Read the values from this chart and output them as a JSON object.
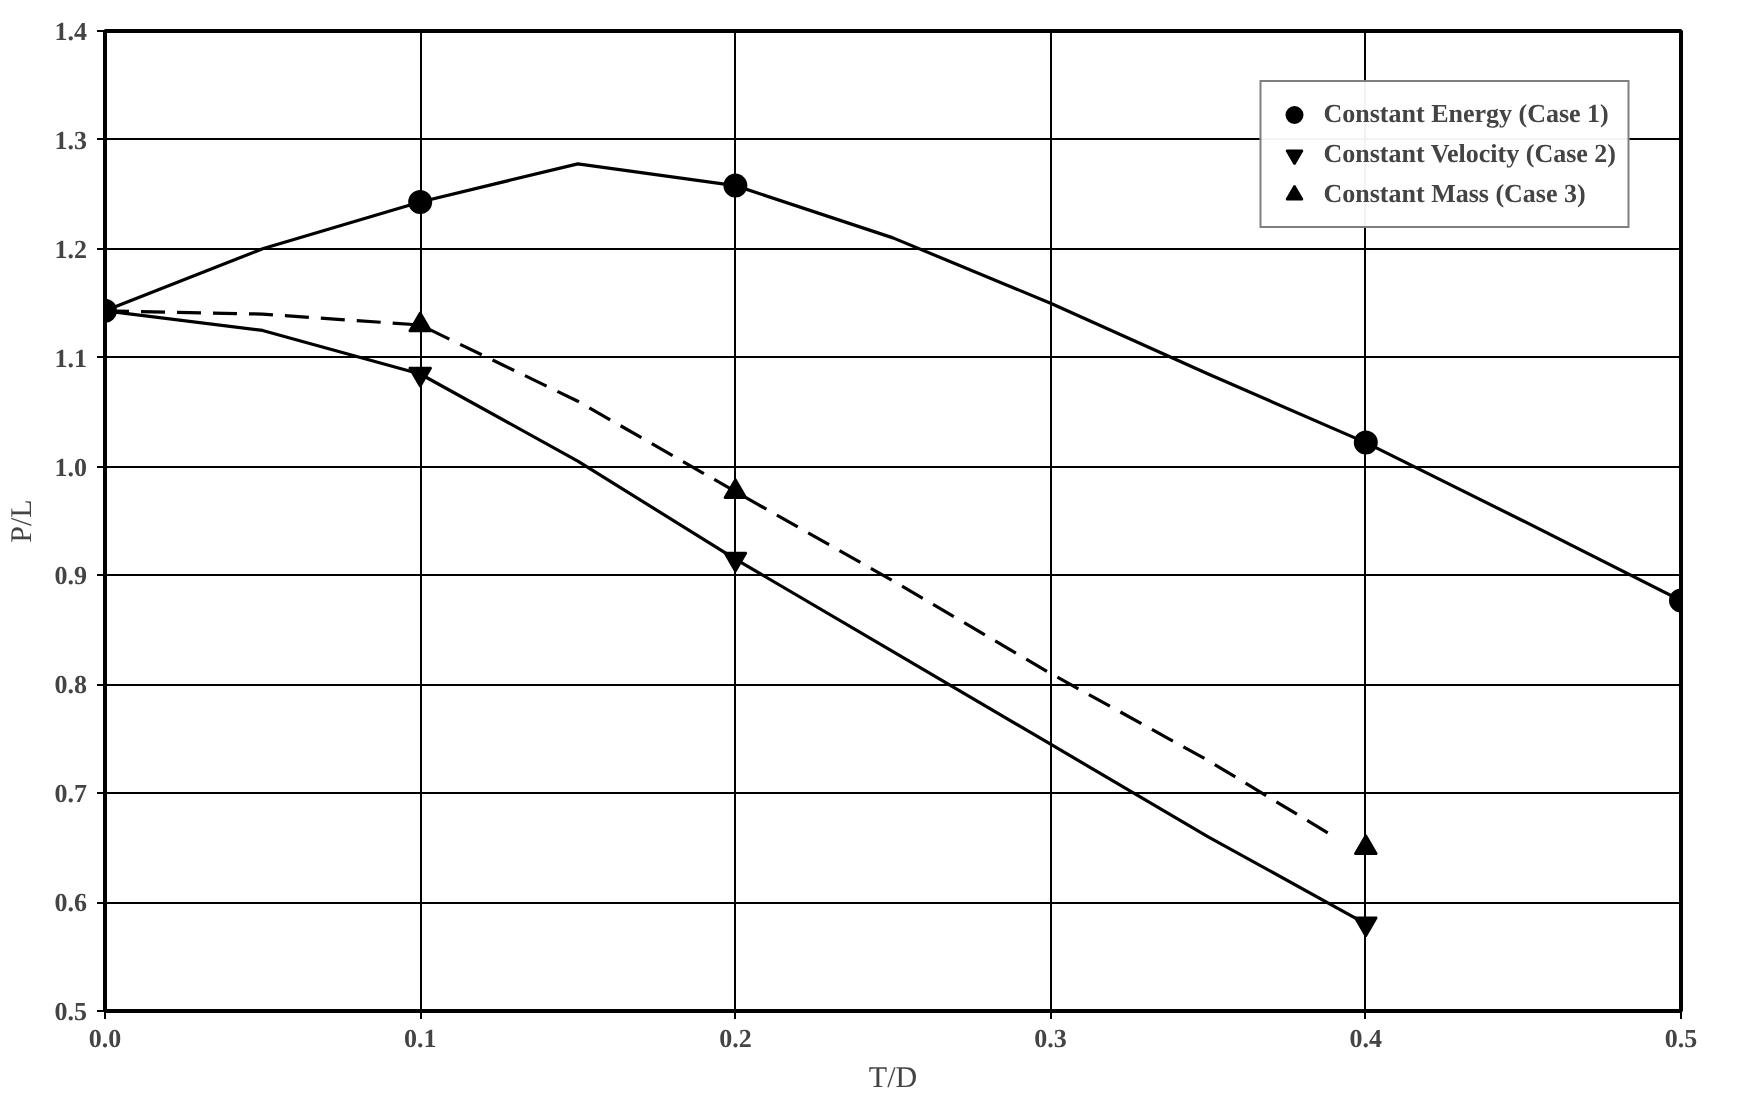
{
  "chart_data": {
    "type": "line",
    "xlabel": "T/D",
    "ylabel": "P/L",
    "xlim": [
      0,
      0.5
    ],
    "ylim": [
      0.5,
      1.4
    ],
    "xticks": [
      {
        "value": 0,
        "label": "0.0"
      },
      0.1,
      0.2,
      0.3,
      0.4,
      0.5
    ],
    "yticks": [
      0.5,
      0.6,
      0.7,
      0.8,
      0.9,
      {
        "value": 1,
        "label": "1.0"
      },
      1.1,
      1.2,
      1.3,
      1.4
    ],
    "grid": true,
    "legend": "top right",
    "series": [
      {
        "color": "#000000",
        "line_style": "solid",
        "x": [
          0,
          0.05,
          0.1,
          0.15,
          0.2,
          0.25,
          0.3,
          0.35,
          0.4,
          0.45,
          0.5
        ],
        "values": [
          1.143,
          1.2,
          1.243,
          1.278,
          1.258,
          1.21,
          1.15,
          1.085,
          1.022,
          0.95,
          0.877
        ]
      },
      {
        "color": "#000000",
        "line_style": "solid",
        "x": [
          0,
          0.05,
          0.1,
          0.15,
          0.2,
          0.25,
          0.3,
          0.35,
          0.4
        ],
        "values": [
          1.143,
          1.125,
          1.085,
          1.005,
          0.915,
          0.83,
          0.745,
          0.66,
          0.58
        ]
      },
      {
        "color": "#000000",
        "line_style": "dashed",
        "x": [
          0,
          0.05,
          0.1,
          0.15,
          0.2,
          0.25,
          0.3,
          0.35,
          0.39
        ],
        "values": [
          1.143,
          1.14,
          1.13,
          1.06,
          0.977,
          0.895,
          0.81,
          0.73,
          0.66
        ]
      },
      {
        "type": "scatter",
        "name": "Constant Energy (Case 1)",
        "color": "#000000",
        "marker": "circle",
        "x": [
          0,
          0.1,
          0.2,
          0.4,
          0.5
        ],
        "values": [
          1.143,
          1.243,
          1.258,
          1.022,
          0.877
        ]
      },
      {
        "type": "scatter",
        "name": "Constant Velocity (Case 2)",
        "color": "#000000",
        "x": [
          0.1,
          0.2,
          0.4
        ],
        "values": [
          1.085,
          0.915,
          0.58
        ]
      },
      {
        "type": "scatter",
        "name": "Constant Mass (Case 3)",
        "color": "#000000",
        "marker": "triangle",
        "x": [
          0.1,
          0.2,
          0.4
        ],
        "values": [
          1.13,
          0.977,
          0.65
        ]
      }
    ]
  }
}
